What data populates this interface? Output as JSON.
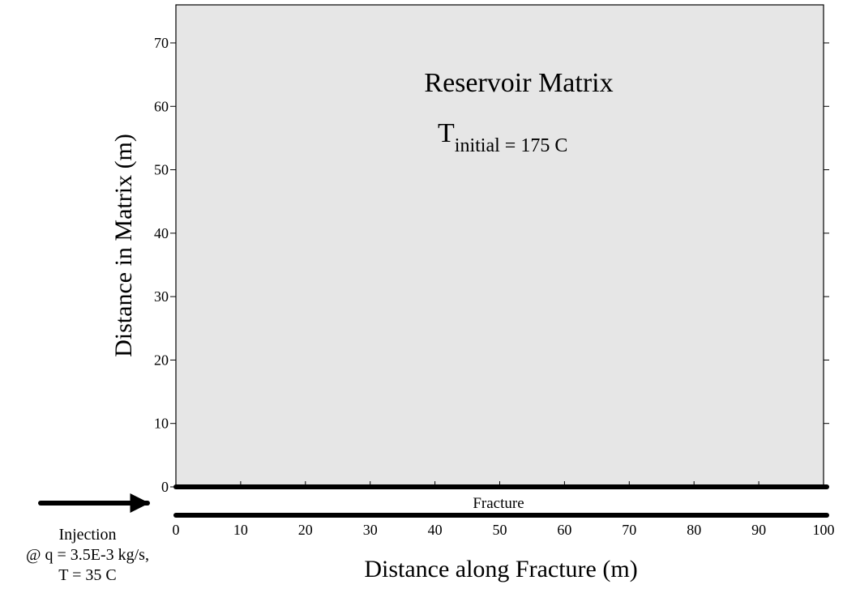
{
  "title": "Reservoir Matrix",
  "annotation": {
    "main": "T",
    "sub": "initial",
    "rest": " = 175 C"
  },
  "fracture_label": "Fracture",
  "xlabel": "Distance along Fracture (m)",
  "ylabel": "Distance in Matrix (m)",
  "injection": {
    "line1": "Injection",
    "line2": "@ q = 3.5E-3 kg/s,",
    "line3": "T = 35 C"
  },
  "colors": {
    "matrix_fill": "#e6e6e6",
    "fracture": "#000000"
  },
  "chart_data": {
    "type": "diagram",
    "xlim": [
      0,
      100
    ],
    "ylim": [
      0,
      76
    ],
    "x_ticks": [
      0,
      10,
      20,
      30,
      40,
      50,
      60,
      70,
      80,
      90,
      100
    ],
    "y_ticks": [
      0,
      10,
      20,
      30,
      40,
      50,
      60,
      70
    ],
    "x_tick_labels": [
      "0",
      "10",
      "20",
      "30",
      "40",
      "50",
      "60",
      "70",
      "80",
      "90",
      "100"
    ],
    "y_tick_labels": [
      "0",
      "10",
      "20",
      "30",
      "40",
      "50",
      "60",
      "70"
    ],
    "grid": false
  }
}
